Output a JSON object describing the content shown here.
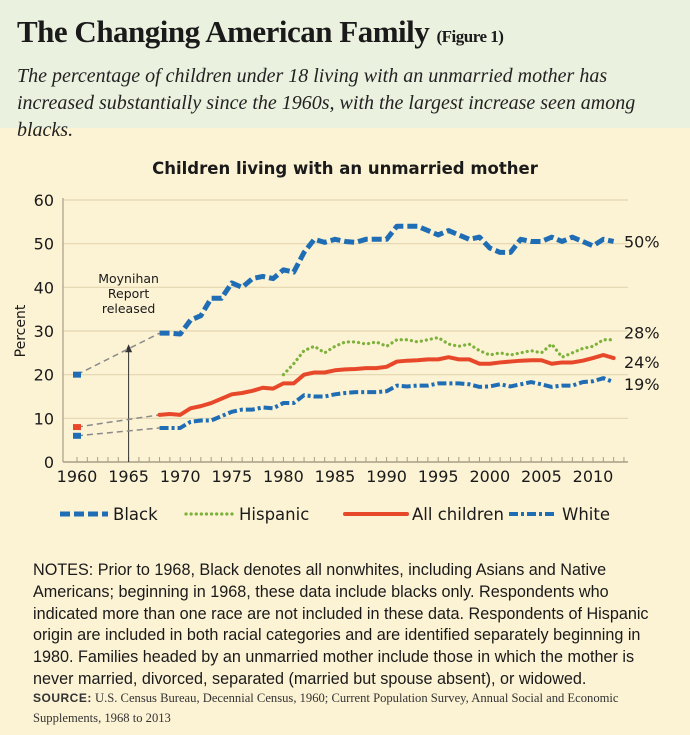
{
  "header": {
    "title": "The Changing American Family",
    "figure_label": "(Figure 1)",
    "subtitle": "The percentage of children under 18 living with an unmarried mother has increased substantially since the 1960s, with the largest increase seen among blacks."
  },
  "chart_data": {
    "type": "line",
    "title": "Children living with an unmarried mother",
    "xlabel": "",
    "ylabel": "Percent",
    "xlim": [
      1960,
      2013
    ],
    "ylim": [
      0,
      60
    ],
    "x_ticks": [
      "1960",
      "1965",
      "1970",
      "1975",
      "1980",
      "1985",
      "1990",
      "1995",
      "2000",
      "2005",
      "2010"
    ],
    "y_ticks": [
      "0",
      "10",
      "20",
      "30",
      "40",
      "50",
      "60"
    ],
    "grid": "horizontal",
    "legend_position": "bottom",
    "annotation": {
      "text_lines": [
        "Moynihan",
        "Report",
        "released"
      ],
      "year": 1965
    },
    "series": [
      {
        "name": "Black",
        "color": "#1f6db5",
        "style": "dashed",
        "end_label": "50%",
        "year_1960": 20,
        "start_year": 1968,
        "values": [
          29.5,
          29.5,
          29.3,
          32.5,
          33.5,
          37.5,
          37.5,
          41,
          40,
          42,
          42.5,
          42,
          44,
          43.5,
          48,
          51,
          50.3,
          51,
          50.5,
          50.3,
          51,
          51,
          51,
          54,
          54,
          54,
          53,
          52,
          53,
          52,
          51,
          51.5,
          49,
          48,
          48,
          51,
          50.5,
          50.5,
          51.5,
          50.5,
          51.5,
          50.5,
          49.5,
          51,
          50.5
        ]
      },
      {
        "name": "Hispanic",
        "color": "#7db23a",
        "style": "dotted",
        "end_label": "28%",
        "year_1960": null,
        "start_year": 1980,
        "values": [
          20,
          22.5,
          25.5,
          26.5,
          25,
          26.5,
          27.5,
          27.5,
          27,
          27.5,
          26.5,
          28,
          28,
          27.5,
          28,
          28.5,
          27,
          26.5,
          27,
          25.5,
          24.5,
          25,
          24.5,
          25,
          25.5,
          25,
          27,
          24,
          25,
          26,
          26.5,
          28,
          28
        ]
      },
      {
        "name": "All children",
        "color": "#e8482a",
        "style": "solid",
        "end_label": "24%",
        "year_1960": 8,
        "start_year": 1968,
        "values": [
          10.8,
          11,
          10.8,
          12.3,
          12.8,
          13.5,
          14.5,
          15.5,
          15.8,
          16.3,
          17,
          16.8,
          18,
          18,
          20,
          20.5,
          20.5,
          21,
          21.2,
          21.3,
          21.5,
          21.5,
          21.8,
          23,
          23.2,
          23.3,
          23.5,
          23.5,
          24,
          23.5,
          23.5,
          22.5,
          22.5,
          22.8,
          23,
          23.2,
          23.3,
          23.3,
          22.5,
          22.8,
          22.8,
          23.2,
          23.8,
          24.5,
          23.8
        ]
      },
      {
        "name": "White",
        "color": "#1f6db5",
        "style": "dash-dot",
        "end_label": "19%",
        "year_1960": 6,
        "start_year": 1968,
        "values": [
          7.8,
          7.8,
          7.8,
          9.2,
          9.5,
          9.5,
          10.5,
          11.5,
          12,
          12,
          12.5,
          12.3,
          13.5,
          13.5,
          15.3,
          15,
          15,
          15.5,
          15.8,
          16,
          16,
          16,
          16.2,
          17.5,
          17.3,
          17.5,
          17.5,
          18,
          18,
          18,
          17.8,
          17.2,
          17.3,
          17.8,
          17.3,
          17.8,
          18.3,
          17.8,
          17.2,
          17.5,
          17.5,
          18.3,
          18.5,
          19.2,
          18.3
        ]
      }
    ]
  },
  "notes": "NOTES: Prior to 1968, Black denotes all nonwhites, including Asians and Native Americans; beginning in 1968, these data include blacks only. Respondents who indicated more than one race are not included in these data. Respondents of Hispanic origin are included in both racial categories and are identified separately beginning in 1980. Families headed by an unmarried mother include those in which the mother is never married, divorced, separated (married but spouse absent), or widowed.",
  "source": {
    "label": "SOURCE:",
    "text": "U.S. Census Bureau, Decennial Census, 1960; Current Population Survey, Annual Social and Economic Supplements, 1968 to 2013"
  }
}
